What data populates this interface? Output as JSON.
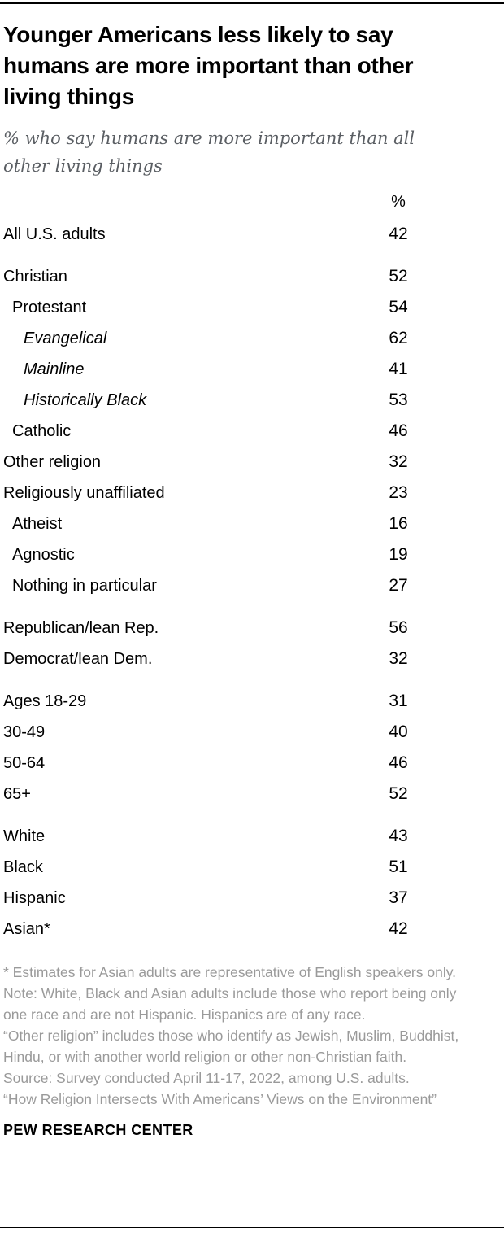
{
  "chart_data": {
    "type": "table",
    "title": "Younger Americans less likely to say humans are more important than other living things",
    "subtitle": "% who say humans are more important than all other living things",
    "value_header": "%",
    "legend_position": "none",
    "categories": [
      "All U.S. adults",
      "Christian",
      "Protestant",
      "Evangelical",
      "Mainline",
      "Historically Black",
      "Catholic",
      "Other religion",
      "Religiously unaffiliated",
      "Atheist",
      "Agnostic",
      "Nothing in particular",
      "Republican/lean Rep.",
      "Democrat/lean Dem.",
      "Ages 18-29",
      "30-49",
      "50-64",
      "65+",
      "White",
      "Black",
      "Hispanic",
      "Asian*"
    ],
    "values": [
      42,
      52,
      54,
      62,
      41,
      53,
      46,
      32,
      23,
      16,
      19,
      27,
      56,
      32,
      31,
      40,
      46,
      52,
      43,
      51,
      37,
      42
    ],
    "groups": [
      {
        "rows": [
          {
            "label": "All U.S. adults",
            "value": "42",
            "indent": 0,
            "italic": false
          }
        ]
      },
      {
        "rows": [
          {
            "label": "Christian",
            "value": "52",
            "indent": 0,
            "italic": false
          },
          {
            "label": "Protestant",
            "value": "54",
            "indent": 1,
            "italic": false
          },
          {
            "label": "Evangelical",
            "value": "62",
            "indent": 2,
            "italic": true
          },
          {
            "label": "Mainline",
            "value": "41",
            "indent": 2,
            "italic": true
          },
          {
            "label": "Historically Black",
            "value": "53",
            "indent": 2,
            "italic": true
          },
          {
            "label": "Catholic",
            "value": "46",
            "indent": 1,
            "italic": false
          },
          {
            "label": "Other religion",
            "value": "32",
            "indent": 0,
            "italic": false
          },
          {
            "label": "Religiously unaffiliated",
            "value": "23",
            "indent": 0,
            "italic": false
          },
          {
            "label": "Atheist",
            "value": "16",
            "indent": 1,
            "italic": false
          },
          {
            "label": "Agnostic",
            "value": "19",
            "indent": 1,
            "italic": false
          },
          {
            "label": "Nothing in particular",
            "value": "27",
            "indent": 1,
            "italic": false
          }
        ]
      },
      {
        "rows": [
          {
            "label": "Republican/lean Rep.",
            "value": "56",
            "indent": 0,
            "italic": false
          },
          {
            "label": "Democrat/lean Dem.",
            "value": "32",
            "indent": 0,
            "italic": false
          }
        ]
      },
      {
        "rows": [
          {
            "label": "Ages 18-29",
            "value": "31",
            "indent": 0,
            "italic": false
          },
          {
            "label": "30-49",
            "value": "40",
            "indent": 0,
            "italic": false
          },
          {
            "label": "50-64",
            "value": "46",
            "indent": 0,
            "italic": false
          },
          {
            "label": "65+",
            "value": "52",
            "indent": 0,
            "italic": false
          }
        ]
      },
      {
        "rows": [
          {
            "label": "White",
            "value": "43",
            "indent": 0,
            "italic": false
          },
          {
            "label": "Black",
            "value": "51",
            "indent": 0,
            "italic": false
          },
          {
            "label": "Hispanic",
            "value": "37",
            "indent": 0,
            "italic": false
          },
          {
            "label": "Asian*",
            "value": "42",
            "indent": 0,
            "italic": false
          }
        ]
      }
    ]
  },
  "footnotes": [
    "* Estimates for Asian adults are representative of English speakers only.",
    "Note: White, Black and Asian adults include those who report being only one race and are not Hispanic. Hispanics are of any race.",
    "“Other religion” includes those who identify as Jewish, Muslim, Buddhist, Hindu, or with another world religion or other non-Christian faith.",
    "Source: Survey conducted April 11-17, 2022, among U.S. adults.",
    "“How Religion Intersects With Americans’ Views on the Environment”"
  ],
  "brand": "PEW RESEARCH CENTER",
  "colors": {
    "rule": "#000000",
    "title": "#000000",
    "subtitle": "#5a5e63",
    "note": "#9a9a9a",
    "brand": "#000000"
  }
}
